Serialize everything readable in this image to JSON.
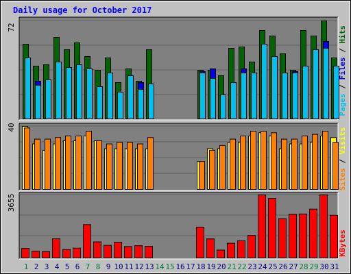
{
  "title": "Daily usage for October 2017",
  "colors": {
    "background": "#c0c0c0",
    "panel": "#808080",
    "hits": "#006400",
    "files": "#0000e0",
    "pages": "#00c0f0",
    "visits": "#ffff00",
    "sites": "#ff8000",
    "kbytes": "#ff0000",
    "title": "#0000ff",
    "weekend_label": "#008040",
    "weekday_label": "#000080"
  },
  "chart_data": [
    {
      "type": "bar",
      "panel": "hits-files-pages",
      "ymax_label": "72",
      "legend": [
        "Pages",
        "Files",
        "Hits"
      ],
      "ymax": 72,
      "categories": [
        "1",
        "2",
        "3",
        "4",
        "5",
        "6",
        "7",
        "8",
        "9",
        "10",
        "11",
        "12",
        "13",
        "14",
        "15",
        "16",
        "17",
        "18",
        "19",
        "20",
        "21",
        "22",
        "23",
        "24",
        "25",
        "26",
        "27",
        "28",
        "29",
        "30",
        "31"
      ],
      "series": [
        {
          "name": "Hits",
          "values": [
            55,
            39,
            40,
            60,
            51,
            56,
            46,
            36,
            45,
            27,
            37,
            28,
            51,
            0,
            0,
            0,
            0,
            36,
            36,
            32,
            52,
            53,
            42,
            65,
            61,
            48,
            36,
            65,
            61,
            72,
            45
          ]
        },
        {
          "name": "Files",
          "values": [
            0,
            28,
            0,
            0,
            0,
            0,
            0,
            0,
            29,
            0,
            0,
            27,
            20,
            0,
            0,
            0,
            0,
            35,
            37,
            0,
            0,
            37,
            0,
            55,
            0,
            0,
            35,
            0,
            0,
            57,
            0
          ]
        },
        {
          "name": "Pages",
          "values": [
            45,
            25,
            29,
            42,
            38,
            40,
            37,
            24,
            34,
            20,
            32,
            22,
            26,
            0,
            0,
            0,
            0,
            34,
            30,
            18,
            27,
            34,
            34,
            55,
            46,
            34,
            34,
            39,
            51,
            52,
            39
          ]
        }
      ]
    },
    {
      "type": "bar",
      "panel": "visits-sites",
      "ymax_label": "40",
      "legend": [
        "Sites",
        "Visits"
      ],
      "ymax": 40,
      "categories": [
        "1",
        "2",
        "3",
        "4",
        "5",
        "6",
        "7",
        "8",
        "9",
        "10",
        "11",
        "12",
        "13",
        "14",
        "15",
        "16",
        "17",
        "18",
        "19",
        "20",
        "21",
        "22",
        "23",
        "24",
        "25",
        "26",
        "27",
        "28",
        "29",
        "30",
        "31"
      ],
      "series": [
        {
          "name": "Visits",
          "values": [
            40,
            29,
            25,
            29,
            31,
            31,
            34,
            31,
            26,
            26,
            26,
            26,
            26,
            0,
            0,
            0,
            0,
            18,
            26,
            26,
            30,
            30,
            34,
            36,
            34,
            26,
            29,
            29,
            30,
            34,
            33
          ]
        },
        {
          "name": "Sites",
          "values": [
            39,
            32,
            32,
            33,
            34,
            34,
            37,
            31,
            29,
            30,
            30,
            29,
            33,
            0,
            0,
            0,
            0,
            18,
            25,
            28,
            32,
            34,
            37,
            37,
            36,
            32,
            32,
            34,
            35,
            37,
            30
          ]
        }
      ]
    },
    {
      "type": "bar",
      "panel": "kbytes",
      "ymax_label": "3655",
      "legend": [
        "KBytes"
      ],
      "ymax": 3655,
      "categories": [
        "1",
        "2",
        "3",
        "4",
        "5",
        "6",
        "7",
        "8",
        "9",
        "10",
        "11",
        "12",
        "13",
        "14",
        "15",
        "16",
        "17",
        "18",
        "19",
        "20",
        "21",
        "22",
        "23",
        "24",
        "25",
        "26",
        "27",
        "28",
        "29",
        "30",
        "31"
      ],
      "series": [
        {
          "name": "KBytes",
          "values": [
            580,
            420,
            400,
            1140,
            520,
            600,
            1950,
            960,
            760,
            940,
            690,
            740,
            700,
            0,
            0,
            0,
            0,
            1800,
            1130,
            490,
            880,
            1020,
            1330,
            3655,
            3450,
            2290,
            2540,
            2560,
            2840,
            3655,
            2480
          ]
        }
      ]
    }
  ],
  "day_labels": [
    "1",
    "2",
    "3",
    "4",
    "5",
    "6",
    "7",
    "8",
    "9",
    "10",
    "11",
    "12",
    "13",
    "14",
    "15",
    "16",
    "17",
    "18",
    "19",
    "20",
    "21",
    "22",
    "23",
    "24",
    "25",
    "26",
    "27",
    "28",
    "29",
    "30",
    "31"
  ],
  "weekend_days": [
    1,
    7,
    8,
    14,
    15,
    21,
    22,
    28,
    29
  ]
}
